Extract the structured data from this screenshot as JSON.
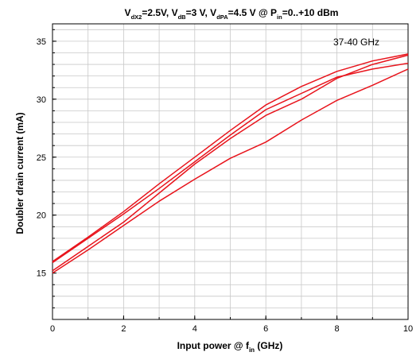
{
  "chart_data": {
    "type": "line",
    "title": {
      "parts": [
        {
          "t": "V",
          "sub": false
        },
        {
          "t": "dX2",
          "sub": true
        },
        {
          "t": "=2.5V, V",
          "sub": false
        },
        {
          "t": "dB",
          "sub": true
        },
        {
          "t": "=3 V, V",
          "sub": false
        },
        {
          "t": "dPA",
          "sub": true
        },
        {
          "t": "=4.5 V @ P",
          "sub": false
        },
        {
          "t": "in",
          "sub": true
        },
        {
          "t": "=0..+10 dBm",
          "sub": false
        }
      ]
    },
    "xlabel": {
      "parts": [
        {
          "t": "Input power @ f",
          "sub": false
        },
        {
          "t": "in",
          "sub": true
        },
        {
          "t": " (GHz)",
          "sub": false
        }
      ]
    },
    "ylabel": "Doubler drain current (mA)",
    "annotation": "37-40 GHz",
    "xlim": [
      0,
      10
    ],
    "ylim": [
      11,
      36.5
    ],
    "x_ticks": [
      0,
      2,
      4,
      6,
      8,
      10
    ],
    "y_ticks": [
      15,
      20,
      25,
      30,
      35
    ],
    "x_minor_step": 1,
    "y_minor_step": 1,
    "grid": true,
    "line_color": "#e8141c",
    "x": [
      0,
      1,
      2,
      3,
      4,
      5,
      6,
      7,
      8,
      9,
      10
    ],
    "series": [
      {
        "values": [
          16.0,
          18.1,
          20.3,
          22.7,
          25.0,
          27.3,
          29.5,
          31.1,
          32.4,
          33.3,
          33.9
        ]
      },
      {
        "values": [
          15.9,
          18.0,
          20.1,
          22.3,
          24.6,
          26.9,
          29.1,
          30.5,
          31.9,
          32.6,
          33.1
        ]
      },
      {
        "values": [
          15.2,
          17.3,
          19.4,
          21.9,
          24.4,
          26.6,
          28.6,
          30.0,
          31.8,
          33.0,
          33.8
        ]
      },
      {
        "values": [
          15.0,
          17.0,
          19.1,
          21.2,
          23.1,
          24.9,
          26.3,
          28.2,
          29.9,
          31.2,
          32.6
        ]
      }
    ]
  }
}
